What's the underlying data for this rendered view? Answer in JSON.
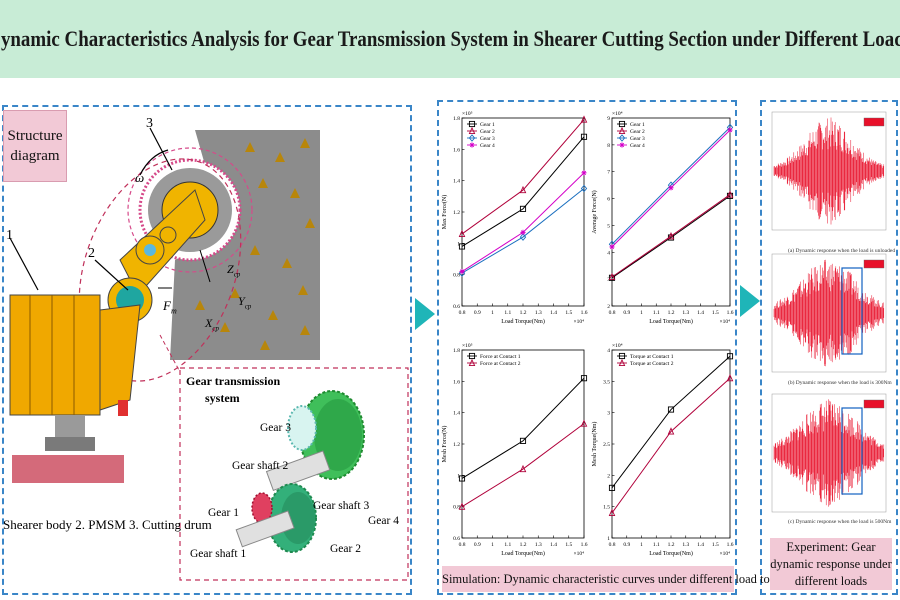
{
  "title": "Dynamic Characteristics Analysis for Gear Transmission System in Shearer Cutting Section under Different Loads",
  "structure": {
    "label": "Structure diagram",
    "numbers": [
      "1",
      "2",
      "3"
    ],
    "caption": "Shearer body  2. PMSM 3. Cutting drum",
    "symbols": {
      "omega": "ω",
      "fm": "F",
      "fm_sub": "m",
      "zcp": "Z",
      "ycp": "Y",
      "xcp": "X",
      "cp_sub": "cp"
    },
    "gear_system_title_line1": "Gear transmission",
    "gear_system_title_line2": "system",
    "gear_labels": [
      "Gear 3",
      "Gear shaft 2",
      "Gear shaft 3",
      "Gear 4",
      "Gear 1",
      "Gear shaft 1",
      "Gear 2"
    ]
  },
  "simulation_label": "Simulation: Dynamic characteristic curves under different load torques",
  "experiment_label": "Experiment: Gear dynamic response under different loads",
  "experiment_captions": [
    "(a) Dynamic response when the load is unloaded",
    "(b) Dynamic response when the load is 300Nm",
    "(c) Dynamic response when the load is 500Nm"
  ],
  "chart_data": [
    {
      "type": "line",
      "xlabel": "Load Torque(Nm)",
      "ylabel": "Max Force(N)",
      "x_exponent": "×10⁴",
      "y_exponent": "×10⁵",
      "x": [
        0.8,
        1.2,
        1.6
      ],
      "xticks": [
        "0.8",
        "0.9",
        "1",
        "1.1",
        "1.2",
        "1.3",
        "1.4",
        "1.5",
        "1.6"
      ],
      "ylim": [
        0.6,
        1.8
      ],
      "yticks": [
        "0.6",
        "0.8",
        "1",
        "1.2",
        "1.4",
        "1.6",
        "1.8"
      ],
      "series": [
        {
          "name": "Gear 1",
          "color": "#000000",
          "marker": "square",
          "values": [
            0.98,
            1.22,
            1.68
          ]
        },
        {
          "name": "Gear 2",
          "color": "#b0003a",
          "marker": "triangle",
          "values": [
            1.06,
            1.34,
            1.79
          ]
        },
        {
          "name": "Gear 3",
          "color": "#1a6fbf",
          "marker": "diamond",
          "values": [
            0.81,
            1.04,
            1.35
          ]
        },
        {
          "name": "Gear 4",
          "color": "#d400c8",
          "marker": "star",
          "values": [
            0.82,
            1.07,
            1.45
          ]
        }
      ]
    },
    {
      "type": "line",
      "xlabel": "Load Torque(Nm)",
      "ylabel": "Average Force(N)",
      "x_exponent": "×10⁴",
      "y_exponent": "×10⁴",
      "x": [
        0.8,
        1.2,
        1.6
      ],
      "xticks": [
        "0.8",
        "0.9",
        "1",
        "1.1",
        "1.2",
        "1.3",
        "1.4",
        "1.5",
        "1.6"
      ],
      "ylim": [
        2,
        9
      ],
      "yticks": [
        "2",
        "3",
        "4",
        "5",
        "6",
        "7",
        "8",
        "9"
      ],
      "series": [
        {
          "name": "Gear 1",
          "color": "#000000",
          "marker": "square",
          "values": [
            3.05,
            4.55,
            6.1
          ]
        },
        {
          "name": "Gear 2",
          "color": "#b0003a",
          "marker": "triangle",
          "values": [
            3.08,
            4.6,
            6.15
          ]
        },
        {
          "name": "Gear 3",
          "color": "#1a6fbf",
          "marker": "diamond",
          "values": [
            4.3,
            6.5,
            8.65
          ]
        },
        {
          "name": "Gear 4",
          "color": "#d400c8",
          "marker": "star",
          "values": [
            4.2,
            6.4,
            8.55
          ]
        }
      ]
    },
    {
      "type": "line",
      "xlabel": "Load Torque(Nm)",
      "ylabel": "Mesh Force(N)",
      "x_exponent": "×10⁴",
      "y_exponent": "×10⁵",
      "x": [
        0.8,
        1.2,
        1.6
      ],
      "xticks": [
        "0.8",
        "0.9",
        "1",
        "1.1",
        "1.2",
        "1.3",
        "1.4",
        "1.5",
        "1.6"
      ],
      "ylim": [
        0.6,
        1.8
      ],
      "yticks": [
        "0.6",
        "0.8",
        "1",
        "1.2",
        "1.4",
        "1.6",
        "1.8"
      ],
      "series": [
        {
          "name": "Force at Contact 1",
          "color": "#000000",
          "marker": "square",
          "values": [
            0.98,
            1.22,
            1.62
          ]
        },
        {
          "name": "Force at Contact 2",
          "color": "#b0003a",
          "marker": "triangle",
          "values": [
            0.8,
            1.04,
            1.33
          ]
        }
      ]
    },
    {
      "type": "line",
      "xlabel": "Load Torque(Nm)",
      "ylabel": "Mesh Torque(Nm)",
      "x_exponent": "×10⁴",
      "y_exponent": "×10⁴",
      "x": [
        0.8,
        1.2,
        1.6
      ],
      "xticks": [
        "0.8",
        "0.9",
        "1",
        "1.1",
        "1.2",
        "1.3",
        "1.4",
        "1.5",
        "1.6"
      ],
      "ylim": [
        1,
        4
      ],
      "yticks": [
        "1",
        "1.5",
        "2",
        "2.5",
        "3",
        "3.5",
        "4"
      ],
      "series": [
        {
          "name": "Torque at Contact 1",
          "color": "#000000",
          "marker": "square",
          "values": [
            1.8,
            3.05,
            3.9
          ]
        },
        {
          "name": "Torque at Contact 2",
          "color": "#b0003a",
          "marker": "triangle",
          "values": [
            1.4,
            2.7,
            3.55
          ]
        }
      ]
    }
  ]
}
